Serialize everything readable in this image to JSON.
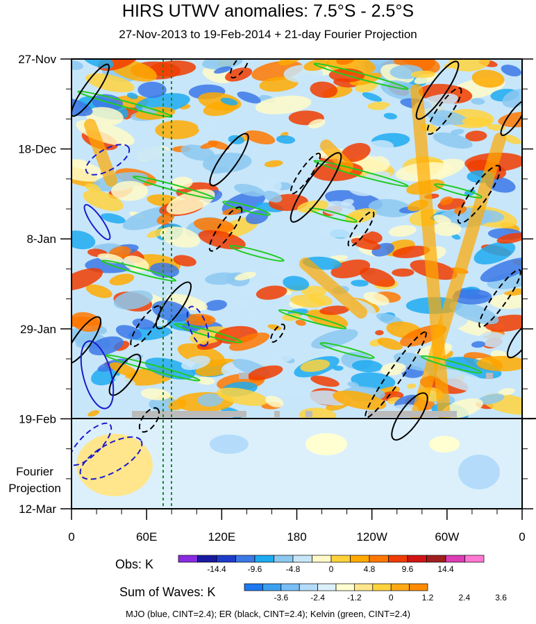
{
  "chart_data": {
    "type": "heatmap",
    "title": "HIRS UTWV anomalies: 7.5°S - 2.5°S",
    "subtitle": "27-Nov-2013 to 19-Feb-2014 + 21-day Fourier Projection",
    "y_tick_labels": [
      "27-Nov",
      "18-Dec",
      "8-Jan",
      "29-Jan",
      "19-Feb",
      "12-Mar"
    ],
    "x_tick_labels": [
      "0",
      "60E",
      "120E",
      "180",
      "120W",
      "60W",
      "0"
    ],
    "projection_label": [
      "Fourier",
      "Projection"
    ],
    "obs_legend": {
      "label": "Obs: K",
      "ticks": [
        "-14.4",
        "-9.6",
        "-4.8",
        "0",
        "4.8",
        "9.6",
        "14.4"
      ],
      "colors": [
        "#8a2be2",
        "#1a1aa0",
        "#1e3cc8",
        "#3c78e6",
        "#1eaaf0",
        "#8cc8f0",
        "#c8e6fa",
        "#fffac8",
        "#ffd23c",
        "#ffaa00",
        "#ff7800",
        "#f03c00",
        "#d21414",
        "#a01e1e",
        "#dc3cb4",
        "#ff78d2"
      ]
    },
    "waves_legend": {
      "label": "Sum of Waves: K",
      "ticks": [
        "-3.6",
        "-2.4",
        "-1.2",
        "0",
        "1.2",
        "2.4",
        "3.6"
      ],
      "colors": [
        "#1e78f0",
        "#3ca0f0",
        "#78bef5",
        "#b4dcfa",
        "#dcf0fc",
        "#ffffd2",
        "#ffe68c",
        "#ffd23c",
        "#ffaa14",
        "#ff8c00"
      ]
    },
    "footer": "MJO (blue, CINT=2.4); ER (black, CINT=2.4); Kelvin (green, CINT=2.4)"
  }
}
